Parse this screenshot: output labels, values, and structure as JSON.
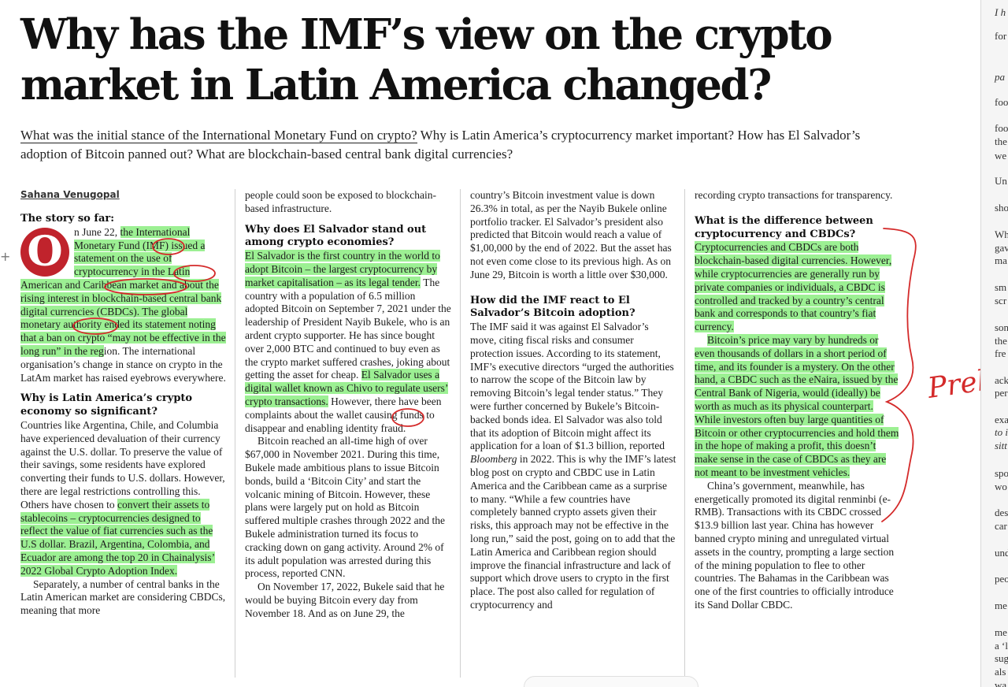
{
  "headline": "Why has the IMF’s view on the crypto market in Latin America changed?",
  "standfirst": {
    "q1": "What was the initial stance of the International Monetary Fund on crypto?",
    "q2": " Why is Latin America’s cryptocurrency market important? How has El Salvador’s adoption of Bitcoin panned out? What are blockchain-based central bank digital currencies?"
  },
  "byline": "Sahana Venugopal",
  "col1": {
    "h_story": "The story so far:",
    "dropcap": "O",
    "p1_a": "n June 22, ",
    "p1_hl": "the International Monetary Fund (IMF) issued a statement on the use of cryptocurrency in the Latin American and Caribbean market and about the rising interest in blockchain-based central bank digital currencies (CBDCs). The global monetary authority ended its statement noting that a ban on crypto “may not be effective in the long run” in the reg",
    "p1_b": "ion. The international organisation’s change in stance on crypto in the LatAm market has raised eyebrows everywhere.",
    "h2": "Why is Latin America’s crypto economy so significant?",
    "p2_a": "Countries like Argentina, Chile, and Columbia have experienced devaluation of their currency against the U.S. dollar. To preserve the value of their savings, some residents have explored converting their funds to U.S. dollars. However, there are legal restrictions controlling this. Others have chosen to ",
    "p2_hl": "convert their assets to stablecoins – cryptocurrencies designed to reflect the value of fiat currencies such as the U.S dollar. Brazil, Argentina, Colombia, and Ecuador are among the top 20 in Chainalysis’ 2022 Global Crypto Adoption Index.",
    "p3": "Separately, a number of central banks in the Latin American market are considering CBDCs, meaning that more"
  },
  "col2": {
    "p1": "people could soon be exposed to blockchain-based infrastructure.",
    "h1": "Why does El Salvador stand out among crypto economies?",
    "p2_hl": "El Salvador is the first country in the world to adopt Bitcoin – the largest cryptocurrency by market capitalisation – as its legal tender.",
    "p2_a": " The country with a population of 6.5 million adopted Bitcoin on September 7, 2021 under the leadership of President Nayib Bukele, who is an ardent crypto supporter. He has since bought over 2,000 BTC and continued to buy even as the crypto market suffered crashes, joking about getting the asset for cheap. ",
    "p2_hl2": "El Salvador uses a digital wallet known as Chivo to regulate users’ crypto transactions.",
    "p2_b": " However, there have been complaints about the wallet causing funds to disappear and enabling identity fraud.",
    "p3": "Bitcoin reached an all-time high of over $67,000 in November 2021. During this time, Bukele made ambitious plans to issue Bitcoin bonds, build a ‘Bitcoin City’ and start the volcanic mining of Bitcoin. However, these plans were largely put on hold as Bitcoin suffered multiple crashes through 2022 and the Bukele administration turned its focus to cracking down on gang activity. Around 2% of its adult population was arrested during this process, reported CNN.",
    "p4": "On November 17, 2022, Bukele said that he would be buying Bitcoin every day from November 18. And as on June 29, the"
  },
  "col3": {
    "p1": "country’s Bitcoin investment value is down 26.3% in total, as per the Nayib Bukele online portfolio tracker. El Salvador’s president also predicted that Bitcoin would reach a value of $1,00,000 by the end of 2022. But the asset has not even come close to its previous high. As on June 29, Bitcoin is worth a little over $30,000.",
    "h1": "How did the IMF react to El Salvador’s Bitcoin adoption?",
    "p2_a": "The IMF said it was against El Salvador’s move, citing fiscal risks and consumer protection issues. According to its statement, IMF’s executive directors “urged the authorities to narrow the scope of the Bitcoin law by removing Bitcoin’s legal tender status.” They were further concerned by Bukele’s Bitcoin-backed bonds idea. El Salvador was also told that its adoption of Bitcoin might affect its application for a loan of $1.3 billion, reported ",
    "p2_em": "Bloomberg",
    "p2_b": " in 2022. This is why the IMF’s latest blog post on crypto and CBDC use in Latin America and the Caribbean came as a surprise to many. “While a few countries have completely banned crypto assets given their risks, this approach may not be effective in the long run,” said the post, going on to add that the Latin America and Caribbean region should improve the financial infrastructure and lack of support which drove users to crypto in the first place. The post also called for regulation of cryptocurrency and"
  },
  "col4": {
    "p1": "recording crypto transactions for transparency.",
    "h1": "What is the difference between cryptocurrency and CBDCs?",
    "p2_hl": "Cryptocurrencies and CBDCs are both blockchain-based digital currencies. However, while cryptocurrencies are generally run by private companies or individuals, a CBDC is controlled and tracked by a country’s central bank and corresponds to that country’s fiat currency.",
    "p3_hl": "Bitcoin’s price may vary by hundreds or even thousands of dollars in a short period of time, and its founder is a mystery. On the other hand, a CBDC such as the eNaira, issued by the Central Bank of Nigeria, would (ideally) be worth as much as its physical counterpart. While investors often buy large quantities of Bitcoin or other cryptocurrencies and hold them in the hope of making a profit, this doesn’t make sense in the case of CBDCs as they are not meant to be investment vehicles.",
    "p4": "China’s government, meanwhile, has energetically promoted its digital renminbi (e-RMB). Transactions with its CBDC crossed $13.9 billion last year. China has however banned crypto mining and unregulated virtual assets in the country, prompting a large section of the mining population to flee to other countries. The Bahamas in the Caribbean was one of the first countries to officially introduce its Sand Dollar CBDC."
  },
  "handwriting": "Prelim",
  "side_fragments": [
    {
      "t": "I h",
      "i": true
    },
    {
      "t": "for",
      "i": false
    },
    {
      "t": "pa",
      "i": true
    },
    {
      "t": "foo",
      "i": false
    },
    {
      "t": "foo",
      "i": false
    },
    {
      "t": "the",
      "i": false
    },
    {
      "t": "we",
      "i": false
    },
    {
      "t": "Un",
      "i": false
    },
    {
      "t": "sho",
      "i": false
    },
    {
      "t": "Wh",
      "i": false
    },
    {
      "t": "gav",
      "i": false
    },
    {
      "t": "ma",
      "i": false
    },
    {
      "t": "sm",
      "i": false
    },
    {
      "t": "scr",
      "i": false
    },
    {
      "t": "son",
      "i": false
    },
    {
      "t": "the",
      "i": false
    },
    {
      "t": "fre",
      "i": false
    },
    {
      "t": "ack",
      "i": false
    },
    {
      "t": "per",
      "i": false
    },
    {
      "t": "exa",
      "i": false
    },
    {
      "t": "to i",
      "i": true
    },
    {
      "t": "sitt",
      "i": true
    },
    {
      "t": "spo",
      "i": false
    },
    {
      "t": "wo",
      "i": false
    },
    {
      "t": "des",
      "i": false
    },
    {
      "t": "car",
      "i": false
    },
    {
      "t": "und",
      "i": false
    },
    {
      "t": "peo",
      "i": false
    },
    {
      "t": "me",
      "i": false
    },
    {
      "t": "me",
      "i": false
    },
    {
      "t": "a ‘l",
      "i": false
    },
    {
      "t": "sug",
      "i": false
    },
    {
      "t": "als",
      "i": false
    },
    {
      "t": "wa",
      "i": false
    }
  ],
  "colors": {
    "highlight": "#60e650",
    "ink": "#d42a2a",
    "dropcap": "#c0232c"
  }
}
